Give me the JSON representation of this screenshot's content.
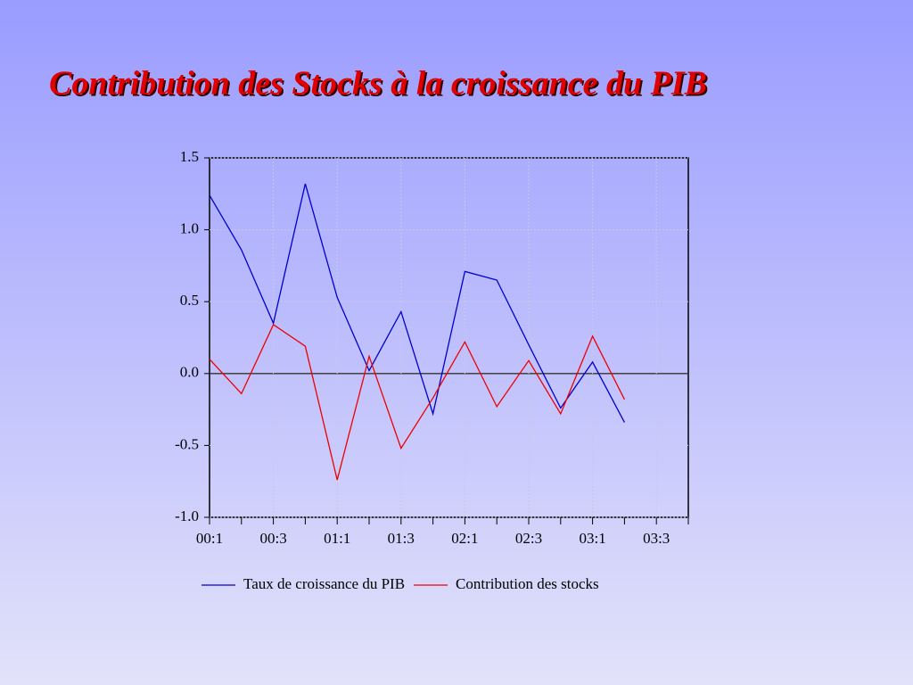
{
  "chart_data": {
    "type": "line",
    "title": "Contribution des Stocks à la croissance du PIB",
    "categories": [
      "00:1",
      null,
      "00:3",
      null,
      "01:1",
      null,
      "01:3",
      null,
      "02:1",
      null,
      "02:3",
      null,
      "03:1",
      null,
      "03:3",
      null
    ],
    "series": [
      {
        "name": "Taux de croissance du PIB",
        "color": "#0000cc",
        "values": [
          1.24,
          0.86,
          0.35,
          1.32,
          0.53,
          0.02,
          0.43,
          -0.28,
          0.71,
          0.65,
          0.2,
          -0.24,
          0.08,
          -0.34,
          null,
          null
        ]
      },
      {
        "name": "Contribution des stocks",
        "color": "#ee0000",
        "values": [
          0.1,
          -0.14,
          0.34,
          0.19,
          -0.74,
          0.12,
          -0.52,
          -0.17,
          0.22,
          -0.23,
          0.09,
          -0.28,
          0.26,
          -0.18,
          null,
          null
        ]
      }
    ],
    "ylim": [
      -1.0,
      1.5
    ],
    "yticks": [
      {
        "value": -1.0,
        "label": "-1.0"
      },
      -0.5,
      {
        "value": 0,
        "label": "0.0"
      },
      0.5,
      {
        "value": 1.0,
        "label": "1.0"
      },
      1.5
    ],
    "grid": true,
    "legend": "bottom"
  }
}
